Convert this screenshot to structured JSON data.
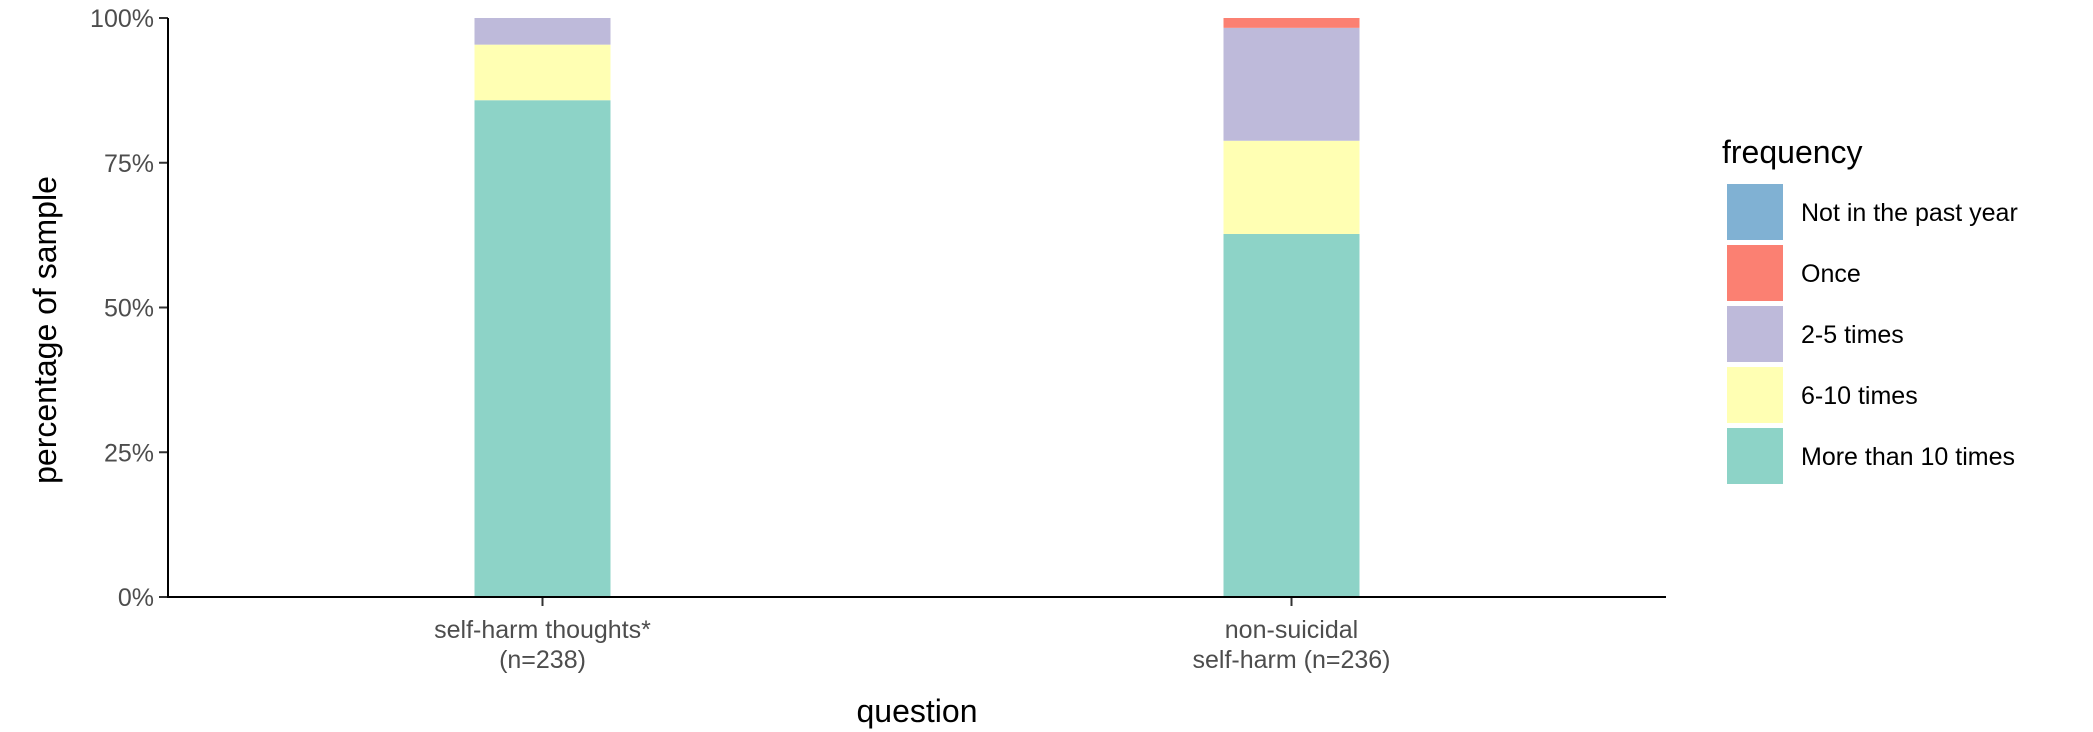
{
  "chart_data": {
    "type": "bar",
    "stacked": true,
    "xlabel": "question",
    "ylabel": "percentage of sample",
    "ylim": [
      0,
      100
    ],
    "y_ticks": [
      "0%",
      "25%",
      "50%",
      "75%",
      "100%"
    ],
    "y_tick_values": [
      0,
      25,
      50,
      75,
      100
    ],
    "categories": [
      [
        "self-harm thoughts*",
        "(n=238)"
      ],
      [
        "non-suicidal",
        "self-harm (n=236)"
      ]
    ],
    "legend": {
      "title": "frequency",
      "placement": "right"
    },
    "series": [
      {
        "name": "Not in the past year",
        "color": "#80B1D3",
        "values": [
          0,
          0
        ]
      },
      {
        "name": "Once",
        "color": "#FB8072",
        "values": [
          0,
          1.7
        ]
      },
      {
        "name": "2-5 times",
        "color": "#BEBADA",
        "values": [
          4.6,
          19.5
        ]
      },
      {
        "name": "6-10 times",
        "color": "#FFFFB3",
        "values": [
          9.6,
          16.1
        ]
      },
      {
        "name": "More than 10 times",
        "color": "#8DD3C7",
        "values": [
          85.8,
          62.7
        ]
      }
    ],
    "grid": false
  }
}
